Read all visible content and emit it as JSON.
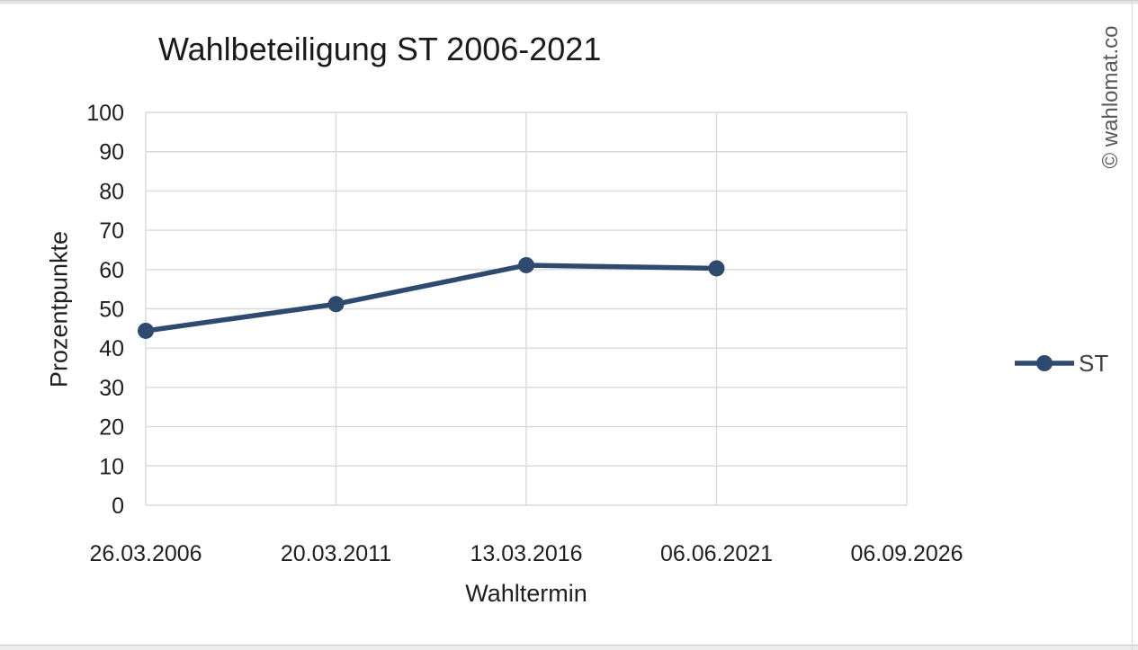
{
  "page": {
    "watermark": "© wahlomat.co"
  },
  "chart_data": {
    "type": "line",
    "title": "Wahlbeteiligung ST 2006-2021",
    "xlabel": "Wahltermin",
    "ylabel": "Prozentpunkte",
    "categories": [
      "26.03.2006",
      "20.03.2011",
      "13.03.2016",
      "06.06.2021",
      "06.09.2026"
    ],
    "series": [
      {
        "name": "ST",
        "values": [
          44.4,
          51.2,
          61.1,
          60.3
        ],
        "color": "#2e4b6f"
      }
    ],
    "ylim": [
      0,
      100
    ],
    "ytick_step": 10,
    "grid": true,
    "legend_position": "right",
    "gridline_color": "#d9d9d9",
    "tick_label_color": "#1f1f1f",
    "legend_label_color": "#404040"
  }
}
